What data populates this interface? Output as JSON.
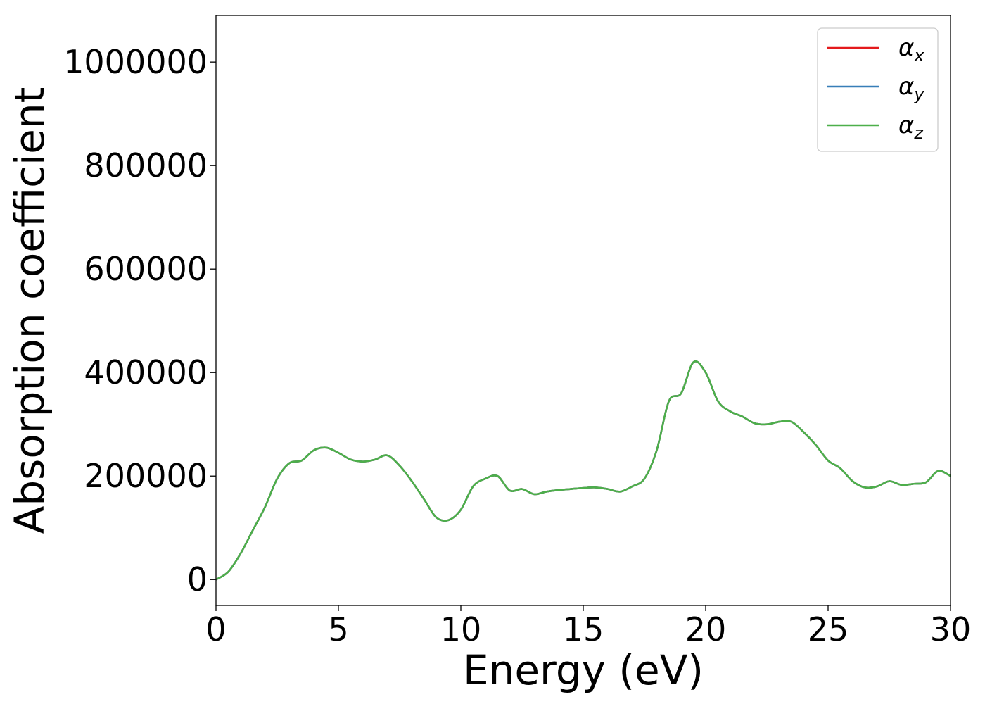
{
  "chart_data": {
    "type": "line",
    "title": "",
    "xlabel": "Energy (eV)",
    "ylabel": "Absorption coefficient",
    "xlim": [
      0,
      30
    ],
    "ylim": [
      -50000,
      1090000
    ],
    "xticks": [
      "0",
      "5",
      "10",
      "15",
      "20",
      "25",
      "30"
    ],
    "yticks": [
      "0",
      "200000",
      "400000",
      "600000",
      "800000",
      "1000000"
    ],
    "grid": false,
    "legend_position": "top-right",
    "series": [
      {
        "name": "α",
        "subscript": "x",
        "color": "#e41a1c",
        "x": [
          0,
          0.5,
          1.0,
          1.5,
          2.0,
          2.5,
          3.0,
          3.5,
          4.0,
          4.5,
          5.0,
          5.5,
          6.0,
          6.5,
          7.0,
          7.5,
          8.0,
          8.5,
          9.0,
          9.5,
          10.0,
          10.5,
          11.0,
          11.5,
          12.0,
          12.5,
          13.0,
          13.5,
          14.0,
          14.5,
          15.0,
          15.5,
          16.0,
          16.5,
          17.0,
          17.5,
          18.0,
          18.5,
          19.0,
          19.5,
          20.0,
          20.5,
          21.0,
          21.5,
          22.0,
          22.5,
          23.0,
          23.5,
          24.0,
          24.5,
          25.0,
          25.5,
          26.0,
          26.5,
          27.0,
          27.5,
          28.0,
          28.5,
          29.0,
          29.5,
          30.0
        ],
        "y": [
          0,
          15000,
          50000,
          95000,
          140000,
          195000,
          225000,
          230000,
          250000,
          255000,
          245000,
          232000,
          228000,
          232000,
          240000,
          220000,
          190000,
          155000,
          120000,
          115000,
          135000,
          180000,
          195000,
          200000,
          172000,
          175000,
          165000,
          170000,
          173000,
          175000,
          177000,
          178000,
          175000,
          170000,
          180000,
          195000,
          250000,
          345000,
          360000,
          420000,
          400000,
          345000,
          325000,
          315000,
          302000,
          300000,
          305000,
          305000,
          285000,
          260000,
          230000,
          215000,
          190000,
          178000,
          180000,
          190000,
          183000,
          185000,
          188000,
          210000,
          200000
        ]
      },
      {
        "name": "α",
        "subscript": "y",
        "color": "#377eb8",
        "x": [
          0,
          0.5,
          1.0,
          1.5,
          2.0,
          2.5,
          3.0,
          3.5,
          4.0,
          4.5,
          5.0,
          5.5,
          6.0,
          6.5,
          7.0,
          7.5,
          8.0,
          8.5,
          9.0,
          9.5,
          10.0,
          10.5,
          11.0,
          11.5,
          12.0,
          12.5,
          13.0,
          13.5,
          14.0,
          14.5,
          15.0,
          15.5,
          16.0,
          16.5,
          17.0,
          17.5,
          18.0,
          18.5,
          19.0,
          19.5,
          20.0,
          20.5,
          21.0,
          21.5,
          22.0,
          22.5,
          23.0,
          23.5,
          24.0,
          24.5,
          25.0,
          25.5,
          26.0,
          26.5,
          27.0,
          27.5,
          28.0,
          28.5,
          29.0,
          29.5,
          30.0
        ],
        "y": [
          0,
          15000,
          50000,
          95000,
          140000,
          195000,
          225000,
          230000,
          250000,
          255000,
          245000,
          232000,
          228000,
          232000,
          240000,
          220000,
          190000,
          155000,
          120000,
          115000,
          135000,
          180000,
          195000,
          200000,
          172000,
          175000,
          165000,
          170000,
          173000,
          175000,
          177000,
          178000,
          175000,
          170000,
          180000,
          195000,
          250000,
          345000,
          360000,
          420000,
          400000,
          345000,
          325000,
          315000,
          302000,
          300000,
          305000,
          305000,
          285000,
          260000,
          230000,
          215000,
          190000,
          178000,
          180000,
          190000,
          183000,
          185000,
          188000,
          210000,
          200000
        ]
      },
      {
        "name": "α",
        "subscript": "z",
        "color": "#4daf4a",
        "x": [
          0,
          0.5,
          1.0,
          1.5,
          2.0,
          2.5,
          3.0,
          3.5,
          4.0,
          4.5,
          5.0,
          5.5,
          6.0,
          6.5,
          7.0,
          7.5,
          8.0,
          8.5,
          9.0,
          9.5,
          10.0,
          10.5,
          11.0,
          11.5,
          12.0,
          12.5,
          13.0,
          13.5,
          14.0,
          14.5,
          15.0,
          15.5,
          16.0,
          16.5,
          17.0,
          17.5,
          18.0,
          18.5,
          19.0,
          19.5,
          20.0,
          20.5,
          21.0,
          21.5,
          22.0,
          22.5,
          23.0,
          23.5,
          24.0,
          24.5,
          25.0,
          25.5,
          26.0,
          26.5,
          27.0,
          27.5,
          28.0,
          28.5,
          29.0,
          29.5,
          30.0
        ],
        "y": [
          0,
          15000,
          50000,
          95000,
          140000,
          195000,
          225000,
          230000,
          250000,
          255000,
          245000,
          232000,
          228000,
          232000,
          240000,
          220000,
          190000,
          155000,
          120000,
          115000,
          135000,
          180000,
          195000,
          200000,
          172000,
          175000,
          165000,
          170000,
          173000,
          175000,
          177000,
          178000,
          175000,
          170000,
          180000,
          195000,
          250000,
          345000,
          360000,
          420000,
          400000,
          345000,
          325000,
          315000,
          302000,
          300000,
          305000,
          305000,
          285000,
          260000,
          230000,
          215000,
          190000,
          178000,
          180000,
          190000,
          183000,
          185000,
          188000,
          210000,
          200000
        ]
      }
    ]
  }
}
